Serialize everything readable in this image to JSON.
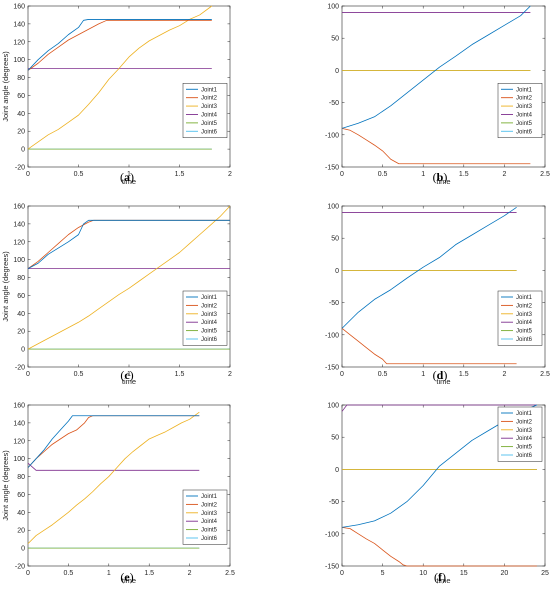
{
  "colors": [
    "#0072BD",
    "#D95319",
    "#EDB120",
    "#7E2F8E",
    "#77AC30",
    "#4DBEEE"
  ],
  "chart_data": [
    {
      "id": "a",
      "caption_letter": "a",
      "type": "line",
      "xlabel": "time",
      "ylabel": "Joint angle (degrees)",
      "xlim": [
        0,
        2
      ],
      "ylim": [
        -20,
        160
      ],
      "xticks": [
        0,
        0.5,
        1,
        1.5,
        2
      ],
      "yticks": [
        -20,
        0,
        20,
        40,
        60,
        80,
        100,
        120,
        140,
        160
      ],
      "legend_position": "center-right",
      "series": [
        {
          "name": "Joint1",
          "x": [
            0,
            0.1,
            0.2,
            0.3,
            0.4,
            0.5,
            0.55,
            0.6,
            0.8,
            1.0,
            1.2,
            1.4,
            1.6,
            1.82
          ],
          "y": [
            88,
            100,
            110,
            118,
            128,
            136,
            144,
            145,
            145,
            145,
            145,
            145,
            145,
            145
          ]
        },
        {
          "name": "Joint2",
          "x": [
            0,
            0.1,
            0.2,
            0.3,
            0.4,
            0.5,
            0.6,
            0.7,
            0.78,
            0.9,
            1.2,
            1.5,
            1.82
          ],
          "y": [
            88,
            96,
            106,
            114,
            122,
            128,
            134,
            140,
            144,
            144,
            144,
            144,
            144
          ]
        },
        {
          "name": "Joint3",
          "x": [
            0,
            0.1,
            0.2,
            0.3,
            0.4,
            0.5,
            0.6,
            0.7,
            0.8,
            0.9,
            1.0,
            1.1,
            1.2,
            1.3,
            1.4,
            1.5,
            1.6,
            1.7,
            1.82
          ],
          "y": [
            0,
            8,
            16,
            22,
            30,
            38,
            50,
            63,
            78,
            90,
            103,
            113,
            121,
            127,
            133,
            138,
            145,
            150,
            160
          ]
        },
        {
          "name": "Joint4",
          "x": [
            0,
            1.82
          ],
          "y": [
            90,
            90
          ]
        },
        {
          "name": "Joint5",
          "x": [
            0,
            1.82
          ],
          "y": [
            0,
            0
          ]
        },
        {
          "name": "Joint6",
          "x": [
            0,
            1.82
          ],
          "y": [
            0,
            0
          ]
        }
      ]
    },
    {
      "id": "b",
      "caption_letter": "b",
      "type": "line",
      "xlabel": "time",
      "ylabel": "",
      "xlim": [
        0,
        2.5
      ],
      "ylim": [
        -150,
        100
      ],
      "xticks": [
        0,
        0.5,
        1,
        1.5,
        2,
        2.5
      ],
      "yticks": [
        -150,
        -100,
        -50,
        0,
        50,
        100
      ],
      "legend_position": "center-right",
      "series": [
        {
          "name": "Joint1",
          "x": [
            0,
            0.2,
            0.4,
            0.6,
            0.8,
            1.0,
            1.2,
            1.4,
            1.6,
            1.8,
            2.0,
            2.2,
            2.32
          ],
          "y": [
            -90,
            -82,
            -72,
            -55,
            -35,
            -15,
            5,
            22,
            40,
            55,
            70,
            85,
            100
          ]
        },
        {
          "name": "Joint2",
          "x": [
            0,
            0.1,
            0.2,
            0.3,
            0.4,
            0.5,
            0.6,
            0.7,
            0.8,
            1.2,
            1.6,
            2.0,
            2.32
          ],
          "y": [
            -90,
            -93,
            -100,
            -108,
            -116,
            -125,
            -138,
            -145,
            -145,
            -145,
            -145,
            -145,
            -145
          ]
        },
        {
          "name": "Joint3",
          "x": [
            0,
            2.32
          ],
          "y": [
            0,
            0
          ]
        },
        {
          "name": "Joint4",
          "x": [
            0,
            2.32
          ],
          "y": [
            90,
            90
          ]
        },
        {
          "name": "Joint5",
          "x": [
            0,
            2.32
          ],
          "y": [
            0,
            0
          ]
        },
        {
          "name": "Joint6",
          "x": [
            0,
            2.32
          ],
          "y": [
            0,
            0
          ]
        }
      ]
    },
    {
      "id": "c",
      "caption_letter": "c",
      "type": "line",
      "xlabel": "time",
      "ylabel": "Joint angle (degrees)",
      "xlim": [
        0,
        2
      ],
      "ylim": [
        -20,
        160
      ],
      "xticks": [
        0,
        0.5,
        1,
        1.5,
        2
      ],
      "yticks": [
        -20,
        0,
        20,
        40,
        60,
        80,
        100,
        120,
        140,
        160
      ],
      "legend_position": "bottom-right",
      "series": [
        {
          "name": "Joint1",
          "x": [
            0,
            0.1,
            0.2,
            0.3,
            0.4,
            0.5,
            0.55,
            0.6,
            0.8,
            1.2,
            1.6,
            2.0
          ],
          "y": [
            90,
            96,
            106,
            113,
            120,
            128,
            140,
            144,
            144,
            144,
            144,
            144
          ]
        },
        {
          "name": "Joint2",
          "x": [
            0,
            0.1,
            0.2,
            0.3,
            0.4,
            0.5,
            0.6,
            0.65,
            0.8,
            1.2,
            1.6,
            2.0
          ],
          "y": [
            90,
            98,
            108,
            118,
            128,
            136,
            142,
            144,
            144,
            144,
            144,
            144
          ]
        },
        {
          "name": "Joint3",
          "x": [
            0,
            0.1,
            0.2,
            0.3,
            0.4,
            0.5,
            0.6,
            0.7,
            0.8,
            0.9,
            1.0,
            1.1,
            1.2,
            1.3,
            1.4,
            1.5,
            1.6,
            1.7,
            1.8,
            1.9,
            2.0
          ],
          "y": [
            0,
            6,
            12,
            18,
            24,
            30,
            37,
            45,
            53,
            61,
            68,
            76,
            84,
            92,
            100,
            108,
            118,
            128,
            138,
            148,
            160
          ]
        },
        {
          "name": "Joint4",
          "x": [
            0,
            2.0
          ],
          "y": [
            90,
            90
          ]
        },
        {
          "name": "Joint5",
          "x": [
            0,
            2.0
          ],
          "y": [
            0,
            0
          ]
        },
        {
          "name": "Joint6",
          "x": [
            0,
            2.0
          ],
          "y": [
            0,
            0
          ]
        }
      ]
    },
    {
      "id": "d",
      "caption_letter": "d",
      "type": "line",
      "xlabel": "time",
      "ylabel": "",
      "xlim": [
        0,
        2.5
      ],
      "ylim": [
        -150,
        100
      ],
      "xticks": [
        0,
        0.5,
        1,
        1.5,
        2,
        2.5
      ],
      "yticks": [
        -150,
        -100,
        -50,
        0,
        50,
        100
      ],
      "legend_position": "bottom-right",
      "series": [
        {
          "name": "Joint1",
          "x": [
            0,
            0.2,
            0.4,
            0.6,
            0.8,
            1.0,
            1.2,
            1.4,
            1.6,
            1.8,
            2.0,
            2.15
          ],
          "y": [
            -90,
            -65,
            -45,
            -30,
            -12,
            5,
            20,
            40,
            55,
            70,
            85,
            98
          ]
        },
        {
          "name": "Joint2",
          "x": [
            0,
            0.1,
            0.2,
            0.3,
            0.4,
            0.5,
            0.55,
            0.6,
            1.0,
            1.5,
            2.15
          ],
          "y": [
            -90,
            -100,
            -110,
            -120,
            -130,
            -138,
            -145,
            -145,
            -145,
            -145,
            -145
          ]
        },
        {
          "name": "Joint3",
          "x": [
            0,
            2.15
          ],
          "y": [
            0,
            0
          ]
        },
        {
          "name": "Joint4",
          "x": [
            0,
            2.15
          ],
          "y": [
            90,
            90
          ]
        },
        {
          "name": "Joint5",
          "x": [
            0,
            2.15
          ],
          "y": [
            0,
            0
          ]
        },
        {
          "name": "Joint6",
          "x": [
            0,
            2.15
          ],
          "y": [
            0,
            0
          ]
        }
      ]
    },
    {
      "id": "e",
      "caption_letter": "e",
      "type": "line",
      "xlabel": "time",
      "ylabel": "Joint angle (degrees)",
      "xlim": [
        0,
        2.5
      ],
      "ylim": [
        -20,
        160
      ],
      "xticks": [
        0,
        0.5,
        1,
        1.5,
        2,
        2.5
      ],
      "yticks": [
        -20,
        0,
        20,
        40,
        60,
        80,
        100,
        120,
        140,
        160
      ],
      "legend_position": "bottom-right",
      "series": [
        {
          "name": "Joint1",
          "x": [
            0,
            0.1,
            0.2,
            0.3,
            0.4,
            0.5,
            0.55,
            0.6,
            1.0,
            1.5,
            2.12
          ],
          "y": [
            90,
            100,
            110,
            122,
            132,
            142,
            148,
            148,
            148,
            148,
            148
          ]
        },
        {
          "name": "Joint2",
          "x": [
            0,
            0.1,
            0.2,
            0.3,
            0.4,
            0.5,
            0.6,
            0.7,
            0.75,
            0.8,
            1.2,
            1.6,
            2.12
          ],
          "y": [
            90,
            100,
            108,
            116,
            122,
            128,
            132,
            140,
            146,
            148,
            148,
            148,
            148
          ]
        },
        {
          "name": "Joint3",
          "x": [
            0,
            0.1,
            0.2,
            0.3,
            0.4,
            0.5,
            0.6,
            0.7,
            0.8,
            0.9,
            1.0,
            1.1,
            1.2,
            1.3,
            1.4,
            1.5,
            1.6,
            1.7,
            1.8,
            1.9,
            2.0,
            2.12
          ],
          "y": [
            5,
            14,
            20,
            26,
            33,
            40,
            48,
            55,
            63,
            72,
            80,
            90,
            100,
            108,
            115,
            122,
            126,
            130,
            135,
            140,
            144,
            152
          ]
        },
        {
          "name": "Joint4",
          "x": [
            0,
            0.1,
            2.12
          ],
          "y": [
            95,
            87,
            87
          ]
        },
        {
          "name": "Joint5",
          "x": [
            0,
            2.12
          ],
          "y": [
            0,
            0
          ]
        },
        {
          "name": "Joint6",
          "x": [
            0,
            2.12
          ],
          "y": [
            0,
            0
          ]
        }
      ]
    },
    {
      "id": "f",
      "caption_letter": "f",
      "type": "line",
      "xlabel": "time",
      "ylabel": "",
      "xlim": [
        0,
        25
      ],
      "ylim": [
        -150,
        100
      ],
      "xticks": [
        0,
        5,
        10,
        15,
        20,
        25
      ],
      "yticks": [
        -150,
        -100,
        -50,
        0,
        50,
        100
      ],
      "legend_position": "top-right",
      "series": [
        {
          "name": "Joint1",
          "x": [
            0,
            2,
            4,
            6,
            8,
            10,
            12,
            14,
            16,
            18,
            20,
            22,
            24
          ],
          "y": [
            -90,
            -86,
            -80,
            -68,
            -50,
            -25,
            5,
            25,
            45,
            60,
            75,
            90,
            100
          ]
        },
        {
          "name": "Joint2",
          "x": [
            0,
            1,
            2,
            3,
            4,
            5,
            6,
            7,
            7.5,
            8,
            12,
            16,
            20,
            24
          ],
          "y": [
            -90,
            -92,
            -100,
            -108,
            -115,
            -125,
            -135,
            -143,
            -148,
            -150,
            -150,
            -150,
            -150,
            -150
          ]
        },
        {
          "name": "Joint3",
          "x": [
            0,
            24
          ],
          "y": [
            0,
            0
          ]
        },
        {
          "name": "Joint4",
          "x": [
            0,
            0.6,
            24
          ],
          "y": [
            90,
            100,
            100
          ]
        },
        {
          "name": "Joint5",
          "x": [
            0,
            24
          ],
          "y": [
            0,
            0
          ]
        },
        {
          "name": "Joint6",
          "x": [
            0,
            24
          ],
          "y": [
            0,
            0
          ]
        }
      ]
    }
  ]
}
